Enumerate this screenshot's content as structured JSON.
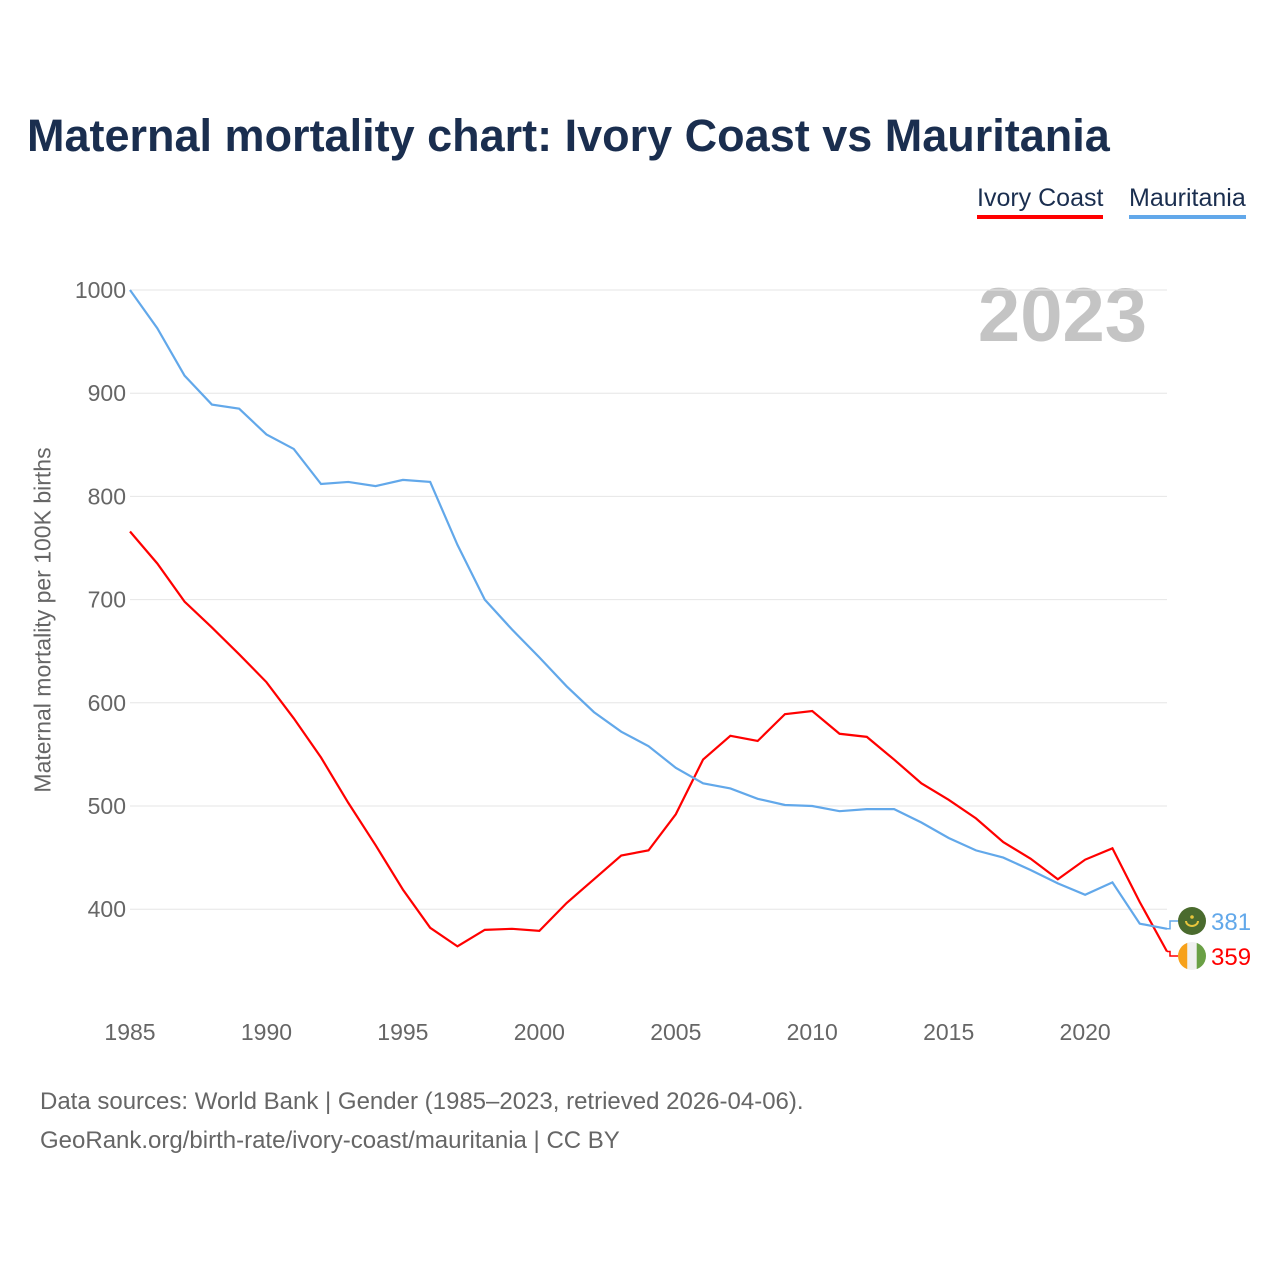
{
  "chart_data": {
    "type": "line",
    "title": "Maternal mortality chart: Ivory Coast vs Mauritania",
    "ylabel": "Maternal mortality per 100K births",
    "xlabel": "",
    "year_label": "2023",
    "xlim": [
      1985,
      2023
    ],
    "ylim": [
      330,
      1000
    ],
    "x_ticks": [
      1985,
      1990,
      1995,
      2000,
      2005,
      2010,
      2015,
      2020
    ],
    "y_ticks": [
      400,
      500,
      600,
      700,
      800,
      900,
      1000
    ],
    "grid": true,
    "legend_position": "top-right",
    "x": [
      1985,
      1986,
      1987,
      1988,
      1989,
      1990,
      1991,
      1992,
      1993,
      1994,
      1995,
      1996,
      1997,
      1998,
      1999,
      2000,
      2001,
      2002,
      2003,
      2004,
      2005,
      2006,
      2007,
      2008,
      2009,
      2010,
      2011,
      2012,
      2013,
      2014,
      2015,
      2016,
      2017,
      2018,
      2019,
      2020,
      2021,
      2022,
      2023
    ],
    "series": [
      {
        "name": "Ivory Coast",
        "color": "#ff0000",
        "end_label": "359",
        "values": [
          766,
          735,
          698,
          673,
          647,
          620,
          585,
          547,
          503,
          462,
          419,
          382,
          364,
          380,
          381,
          379,
          406,
          429,
          452,
          457,
          492,
          545,
          568,
          563,
          589,
          592,
          570,
          567,
          545,
          522,
          506,
          488,
          465,
          449,
          429,
          448,
          459,
          407,
          359
        ]
      },
      {
        "name": "Mauritania",
        "color": "#62a8ea",
        "end_label": "381",
        "values": [
          1000,
          963,
          917,
          889,
          885,
          860,
          846,
          812,
          814,
          810,
          816,
          814,
          753,
          700,
          671,
          644,
          616,
          591,
          572,
          558,
          537,
          522,
          517,
          507,
          501,
          500,
          495,
          497,
          497,
          484,
          469,
          457,
          450,
          438,
          425,
          414,
          426,
          386,
          381
        ]
      }
    ]
  },
  "footer": {
    "line1": "Data sources: World Bank | Gender (1985–2023, retrieved 2026-04-06).",
    "line2": "GeoRank.org/birth-rate/ivory-coast/mauritania | CC BY"
  }
}
